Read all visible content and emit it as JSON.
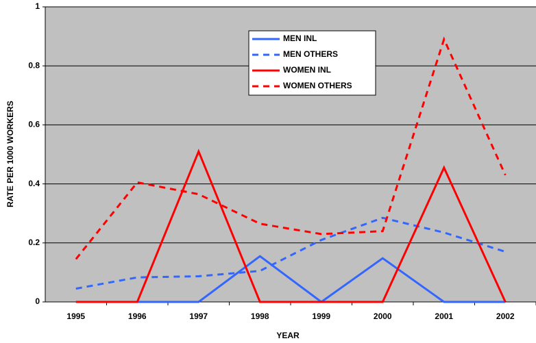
{
  "chart_data": {
    "type": "line",
    "x_label": "YEAR",
    "y_label": "RATE PER 1000 WORKERS",
    "categories": [
      "1995",
      "1996",
      "1997",
      "1998",
      "1999",
      "2000",
      "2001",
      "2002"
    ],
    "series": [
      {
        "name": "MEN INL",
        "color": "#3366ff",
        "dashed": false,
        "values": [
          0,
          0,
          0,
          0.155,
          0,
          0.148,
          0,
          0
        ]
      },
      {
        "name": "MEN OTHERS",
        "color": "#3366ff",
        "dashed": true,
        "values": [
          0.045,
          0.083,
          0.087,
          0.105,
          0.21,
          0.285,
          0.235,
          0.17
        ]
      },
      {
        "name": "WOMEN INL",
        "color": "#ff0000",
        "dashed": false,
        "values": [
          0,
          0,
          0.51,
          0,
          0,
          0,
          0.455,
          0
        ]
      },
      {
        "name": "WOMEN OTHERS",
        "color": "#ff0000",
        "dashed": true,
        "values": [
          0.145,
          0.405,
          0.365,
          0.265,
          0.23,
          0.24,
          0.89,
          0.43
        ]
      }
    ],
    "ylim": [
      0,
      1
    ],
    "yticks": [
      0,
      0.2,
      0.4,
      0.6,
      0.8,
      1
    ],
    "grid": true,
    "legend": "top-center"
  }
}
